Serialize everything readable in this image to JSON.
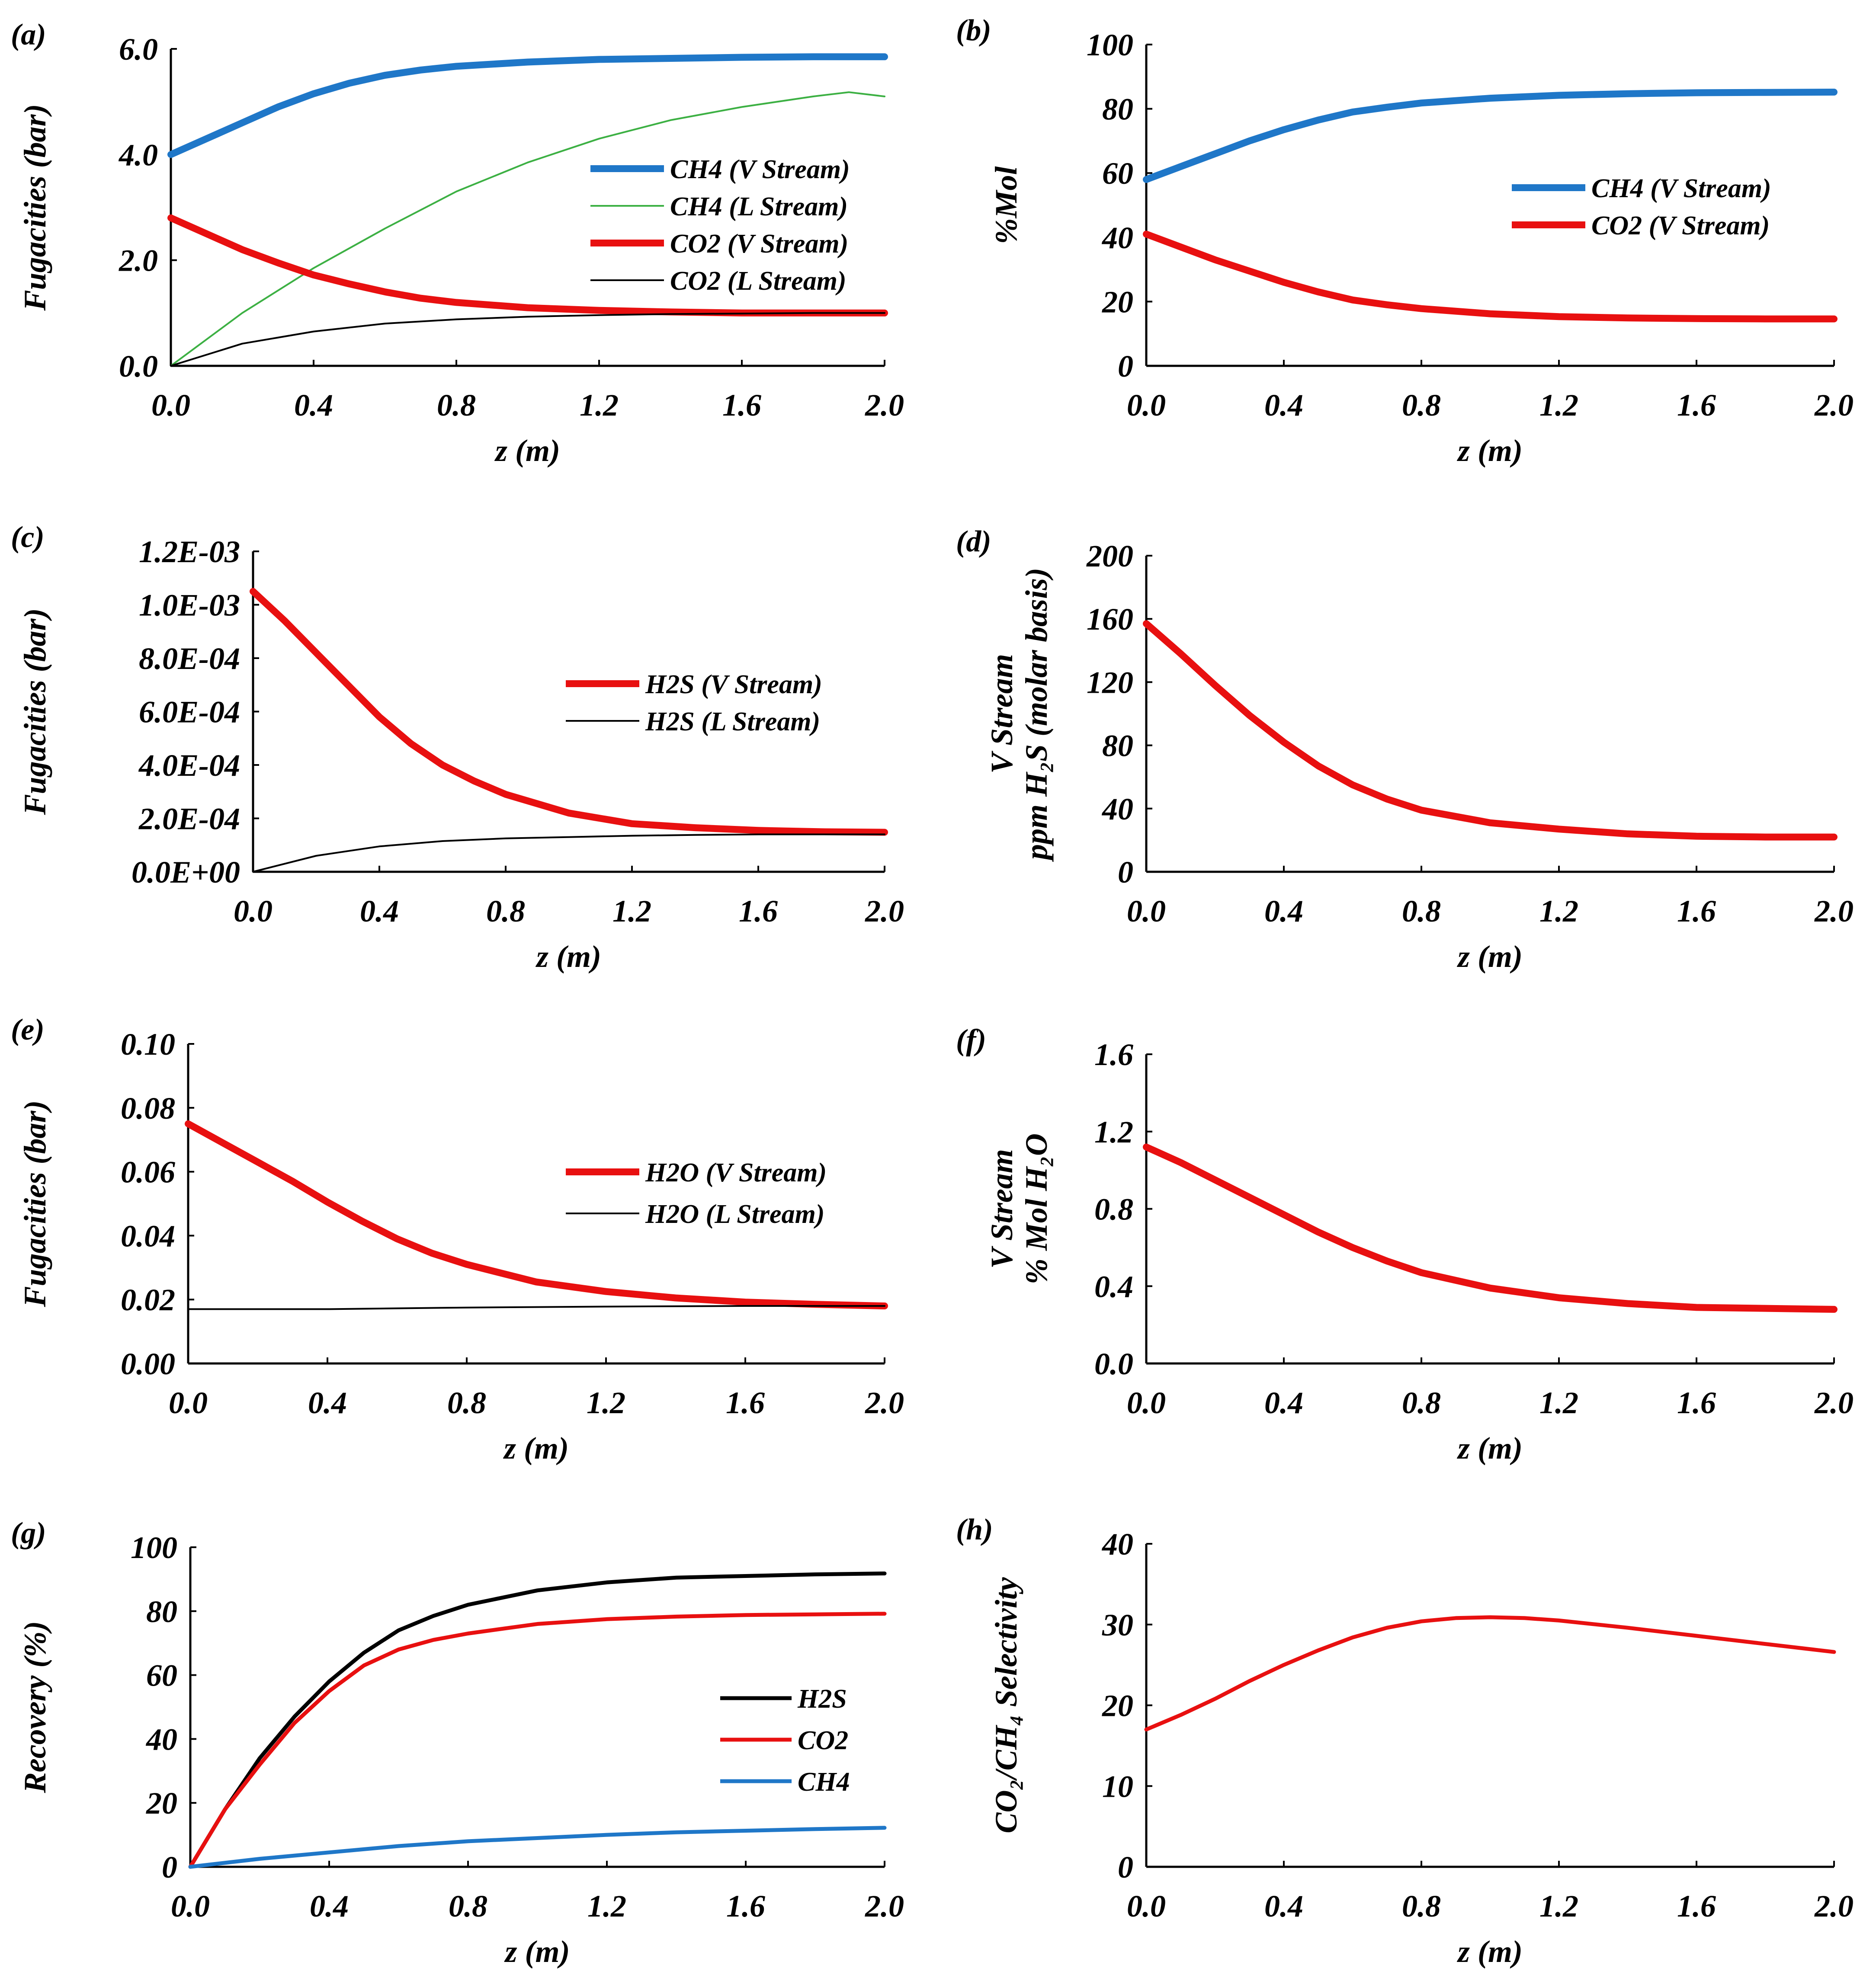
{
  "chart_data": [
    {
      "id": "a",
      "type": "line",
      "tag": "(a)",
      "xlabel": "z (m)",
      "ylabel": "Fugacities (bar)",
      "xlim": [
        0,
        2.0
      ],
      "ylim": [
        0,
        6.0
      ],
      "xticks": [
        "0.0",
        "0.4",
        "0.8",
        "1.2",
        "1.6",
        "2.0"
      ],
      "yticks": [
        "0.0",
        "2.0",
        "4.0",
        "6.0"
      ],
      "legend_position": "center-right",
      "series": [
        {
          "name": "CH4 (V Stream)",
          "color": "#1f77c8",
          "width": "thick",
          "x": [
            0,
            0.1,
            0.2,
            0.3,
            0.4,
            0.5,
            0.6,
            0.7,
            0.8,
            1.0,
            1.2,
            1.4,
            1.6,
            1.8,
            2.0
          ],
          "y": [
            4.0,
            4.3,
            4.6,
            4.9,
            5.15,
            5.35,
            5.5,
            5.6,
            5.67,
            5.75,
            5.8,
            5.82,
            5.84,
            5.85,
            5.85
          ]
        },
        {
          "name": "CH4 (L Stream)",
          "color": "#3cb043",
          "width": "thin",
          "x": [
            0,
            0.2,
            0.4,
            0.6,
            0.8,
            1.0,
            1.2,
            1.4,
            1.6,
            1.8,
            1.9,
            2.0
          ],
          "y": [
            0,
            1.0,
            1.85,
            2.6,
            3.3,
            3.85,
            4.3,
            4.65,
            4.9,
            5.1,
            5.18,
            5.1
          ]
        },
        {
          "name": "CO2 (V Stream)",
          "color": "#e81010",
          "width": "thick",
          "x": [
            0,
            0.1,
            0.2,
            0.3,
            0.4,
            0.5,
            0.6,
            0.7,
            0.8,
            1.0,
            1.2,
            1.4,
            1.6,
            1.8,
            2.0
          ],
          "y": [
            2.8,
            2.5,
            2.2,
            1.95,
            1.72,
            1.55,
            1.4,
            1.28,
            1.2,
            1.1,
            1.05,
            1.02,
            1.0,
            1.0,
            1.0
          ]
        },
        {
          "name": "CO2 (L Stream)",
          "color": "#000000",
          "width": "thin",
          "x": [
            0,
            0.2,
            0.4,
            0.6,
            0.8,
            1.0,
            1.2,
            1.4,
            1.6,
            1.8,
            2.0
          ],
          "y": [
            0,
            0.42,
            0.65,
            0.8,
            0.88,
            0.93,
            0.96,
            0.98,
            0.99,
            1.0,
            1.0
          ]
        }
      ]
    },
    {
      "id": "b",
      "type": "line",
      "tag": "(b)",
      "xlabel": "z (m)",
      "ylabel": "%Mol",
      "xlim": [
        0,
        2.0
      ],
      "ylim": [
        0,
        100
      ],
      "xticks": [
        "0.0",
        "0.4",
        "0.8",
        "1.2",
        "1.6",
        "2.0"
      ],
      "yticks": [
        "0",
        "20",
        "40",
        "60",
        "80",
        "100"
      ],
      "legend_position": "center-right",
      "series": [
        {
          "name": "CH4 (V Stream)",
          "color": "#1f77c8",
          "width": "thick",
          "x": [
            0,
            0.1,
            0.2,
            0.3,
            0.4,
            0.5,
            0.6,
            0.7,
            0.8,
            1.0,
            1.2,
            1.4,
            1.6,
            1.8,
            2.0
          ],
          "y": [
            58,
            62,
            66,
            70,
            73.5,
            76.5,
            79,
            80.5,
            81.8,
            83.3,
            84.2,
            84.7,
            85,
            85.1,
            85.2
          ]
        },
        {
          "name": "CO2 (V Stream)",
          "color": "#e81010",
          "width": "thick",
          "x": [
            0,
            0.1,
            0.2,
            0.3,
            0.4,
            0.5,
            0.6,
            0.7,
            0.8,
            1.0,
            1.2,
            1.4,
            1.6,
            1.8,
            2.0
          ],
          "y": [
            41,
            37,
            33,
            29.5,
            26,
            23,
            20.5,
            19,
            17.8,
            16.2,
            15.3,
            14.9,
            14.7,
            14.6,
            14.6
          ]
        }
      ]
    },
    {
      "id": "c",
      "type": "line",
      "tag": "(c)",
      "xlabel": "z (m)",
      "ylabel": "Fugacities (bar)",
      "xlim": [
        0,
        2.0
      ],
      "ylim": [
        0,
        0.0012
      ],
      "xticks": [
        "0.0",
        "0.4",
        "0.8",
        "1.2",
        "1.6",
        "2.0"
      ],
      "yticks": [
        "0.0E+00",
        "2.0E-04",
        "4.0E-04",
        "6.0E-04",
        "8.0E-04",
        "1.0E-03",
        "1.2E-03"
      ],
      "legend_position": "center-right",
      "series": [
        {
          "name": "H2S (V Stream)",
          "color": "#e81010",
          "width": "thick",
          "x": [
            0,
            0.1,
            0.2,
            0.3,
            0.4,
            0.5,
            0.6,
            0.7,
            0.8,
            1.0,
            1.2,
            1.4,
            1.6,
            1.8,
            2.0
          ],
          "y": [
            0.00105,
            0.00094,
            0.00082,
            0.0007,
            0.00058,
            0.00048,
            0.0004,
            0.00034,
            0.00029,
            0.00022,
            0.00018,
            0.000165,
            0.000155,
            0.00015,
            0.000148
          ]
        },
        {
          "name": "H2S (L Stream)",
          "color": "#000000",
          "width": "thin",
          "x": [
            0,
            0.2,
            0.4,
            0.6,
            0.8,
            1.0,
            1.2,
            1.4,
            1.6,
            1.8,
            2.0
          ],
          "y": [
            0,
            6e-05,
            9.5e-05,
            0.000115,
            0.000125,
            0.00013,
            0.000135,
            0.000138,
            0.00014,
            0.00014,
            0.00014
          ]
        }
      ]
    },
    {
      "id": "d",
      "type": "line",
      "tag": "(d)",
      "xlabel": "z (m)",
      "ylabel_line1": "V Stream",
      "ylabel_line2": "ppm H₂S (molar basis)",
      "xlim": [
        0,
        2.0
      ],
      "ylim": [
        0,
        200
      ],
      "xticks": [
        "0.0",
        "0.4",
        "0.8",
        "1.2",
        "1.6",
        "2.0"
      ],
      "yticks": [
        "0",
        "40",
        "80",
        "120",
        "160",
        "200"
      ],
      "series": [
        {
          "name": "V Stream H2S",
          "color": "#e81010",
          "width": "thick",
          "x": [
            0,
            0.1,
            0.2,
            0.3,
            0.4,
            0.5,
            0.6,
            0.7,
            0.8,
            1.0,
            1.2,
            1.4,
            1.6,
            1.8,
            2.0
          ],
          "y": [
            157,
            138,
            118,
            99,
            82,
            67,
            55,
            46,
            39,
            31,
            27,
            24,
            22.5,
            22,
            22
          ]
        }
      ]
    },
    {
      "id": "e",
      "type": "line",
      "tag": "(e)",
      "xlabel": "z (m)",
      "ylabel": "Fugacities (bar)",
      "xlim": [
        0,
        2.0
      ],
      "ylim": [
        0,
        0.1
      ],
      "xticks": [
        "0.0",
        "0.4",
        "0.8",
        "1.2",
        "1.6",
        "2.0"
      ],
      "yticks": [
        "0.00",
        "0.02",
        "0.04",
        "0.06",
        "0.08",
        "0.10"
      ],
      "legend_position": "center-right",
      "series": [
        {
          "name": "H2O (V Stream)",
          "color": "#e81010",
          "width": "thick",
          "x": [
            0,
            0.1,
            0.2,
            0.3,
            0.4,
            0.5,
            0.6,
            0.7,
            0.8,
            1.0,
            1.2,
            1.4,
            1.6,
            1.8,
            2.0
          ],
          "y": [
            0.075,
            0.069,
            0.063,
            0.057,
            0.0505,
            0.0445,
            0.039,
            0.0345,
            0.031,
            0.0255,
            0.0225,
            0.0205,
            0.0192,
            0.0185,
            0.018
          ]
        },
        {
          "name": "H2O (L Stream)",
          "color": "#000000",
          "width": "thin",
          "x": [
            0,
            0.4,
            0.8,
            1.2,
            1.6,
            2.0
          ],
          "y": [
            0.017,
            0.017,
            0.0175,
            0.0178,
            0.018,
            0.018
          ]
        }
      ]
    },
    {
      "id": "f",
      "type": "line",
      "tag": "(f)",
      "xlabel": "z (m)",
      "ylabel_line1": "V Stream",
      "ylabel_line2": "% Mol H₂O",
      "xlim": [
        0,
        2.0
      ],
      "ylim": [
        0,
        1.6
      ],
      "xticks": [
        "0.0",
        "0.4",
        "0.8",
        "1.2",
        "1.6",
        "2.0"
      ],
      "yticks": [
        "0.0",
        "0.4",
        "0.8",
        "1.2",
        "1.6"
      ],
      "series": [
        {
          "name": "V Stream H2O",
          "color": "#e81010",
          "width": "thick",
          "x": [
            0,
            0.1,
            0.2,
            0.3,
            0.4,
            0.5,
            0.6,
            0.7,
            0.8,
            1.0,
            1.2,
            1.4,
            1.6,
            1.8,
            2.0
          ],
          "y": [
            1.12,
            1.04,
            0.95,
            0.86,
            0.77,
            0.68,
            0.6,
            0.53,
            0.47,
            0.39,
            0.34,
            0.31,
            0.29,
            0.285,
            0.28
          ]
        }
      ]
    },
    {
      "id": "g",
      "type": "line",
      "tag": "(g)",
      "xlabel": "z (m)",
      "ylabel": "Recovery (%)",
      "xlim": [
        0,
        2.0
      ],
      "ylim": [
        0,
        100
      ],
      "xticks": [
        "0.0",
        "0.4",
        "0.8",
        "1.2",
        "1.6",
        "2.0"
      ],
      "yticks": [
        "0",
        "20",
        "40",
        "60",
        "80",
        "100"
      ],
      "legend_position": "lower-right",
      "series": [
        {
          "name": "H2S",
          "color": "#000000",
          "width": "medium",
          "x": [
            0,
            0.1,
            0.2,
            0.3,
            0.4,
            0.5,
            0.6,
            0.7,
            0.8,
            1.0,
            1.2,
            1.4,
            1.6,
            1.8,
            2.0
          ],
          "y": [
            0,
            18,
            34,
            47,
            58,
            67,
            74,
            78.5,
            82,
            86.5,
            89,
            90.5,
            91,
            91.5,
            91.8
          ]
        },
        {
          "name": "CO2",
          "color": "#e81010",
          "width": "medium",
          "x": [
            0,
            0.1,
            0.2,
            0.3,
            0.4,
            0.5,
            0.6,
            0.7,
            0.8,
            1.0,
            1.2,
            1.4,
            1.6,
            1.8,
            2.0
          ],
          "y": [
            0,
            18,
            32,
            45,
            55,
            63,
            68,
            71,
            73,
            76,
            77.5,
            78.3,
            78.8,
            79,
            79.2
          ]
        },
        {
          "name": "CH4",
          "color": "#1f77c8",
          "width": "medium",
          "x": [
            0,
            0.2,
            0.4,
            0.6,
            0.8,
            1.0,
            1.2,
            1.4,
            1.6,
            1.8,
            2.0
          ],
          "y": [
            0,
            2.5,
            4.5,
            6.5,
            8,
            9,
            10,
            10.8,
            11.3,
            11.8,
            12.2
          ]
        }
      ]
    },
    {
      "id": "h",
      "type": "line",
      "tag": "(h)",
      "xlabel": "z (m)",
      "ylabel": "CO₂/CH₄ Selectivity",
      "xlim": [
        0,
        2.0
      ],
      "ylim": [
        0,
        40
      ],
      "xticks": [
        "0.0",
        "0.4",
        "0.8",
        "1.2",
        "1.6",
        "2.0"
      ],
      "yticks": [
        "0",
        "10",
        "20",
        "30",
        "40"
      ],
      "series": [
        {
          "name": "CO2/CH4 Selectivity",
          "color": "#e81010",
          "width": "medium",
          "x": [
            0,
            0.1,
            0.2,
            0.3,
            0.4,
            0.5,
            0.6,
            0.7,
            0.8,
            0.9,
            1.0,
            1.1,
            1.2,
            1.4,
            1.6,
            1.8,
            2.0
          ],
          "y": [
            17,
            18.8,
            20.8,
            23,
            25,
            26.8,
            28.4,
            29.6,
            30.4,
            30.8,
            30.9,
            30.8,
            30.5,
            29.6,
            28.6,
            27.6,
            26.6
          ]
        }
      ]
    }
  ]
}
